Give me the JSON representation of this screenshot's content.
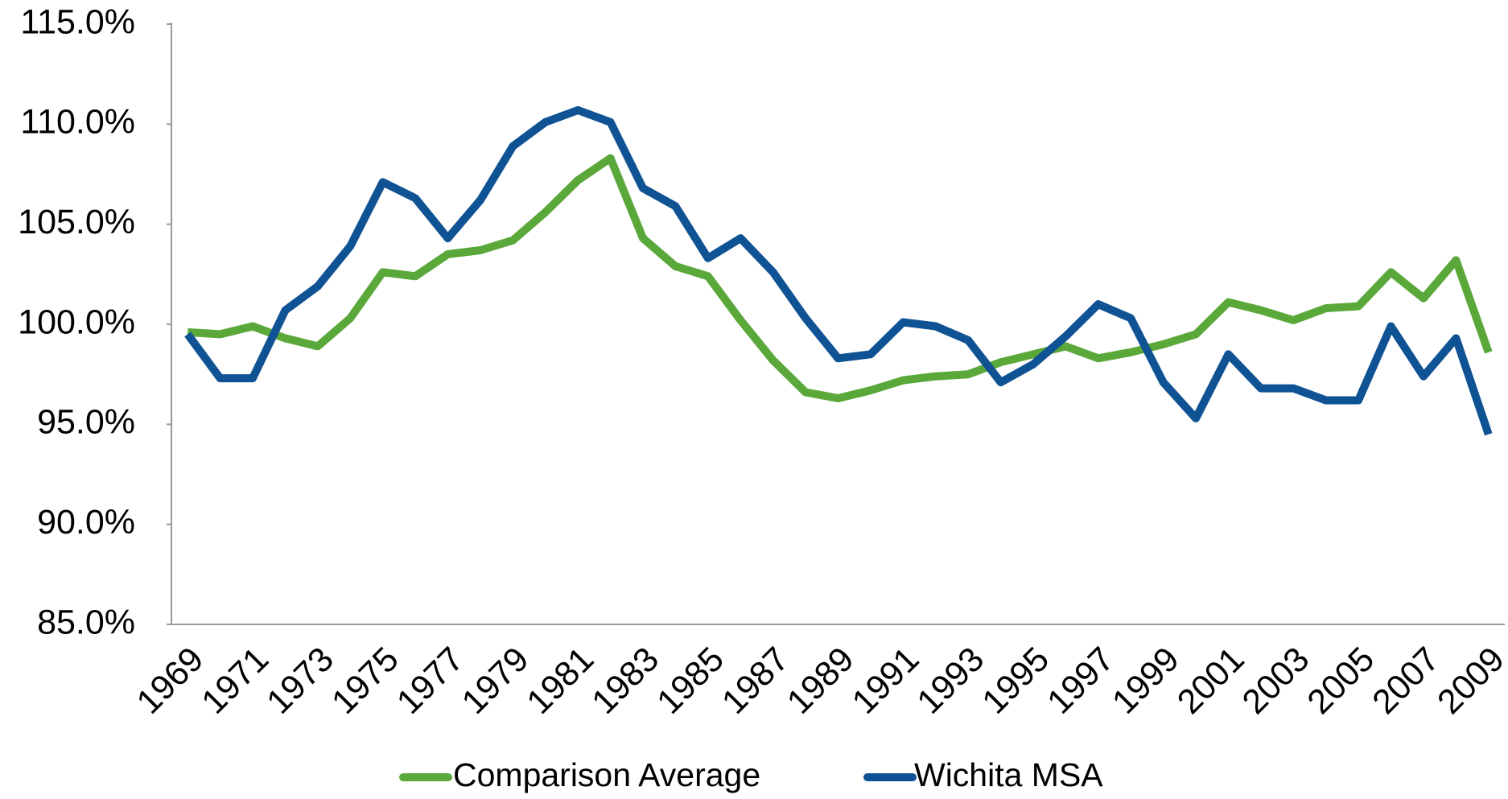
{
  "chart_data": {
    "type": "line",
    "categories": [
      "1969",
      null,
      "1971",
      null,
      "1973",
      null,
      "1975",
      null,
      "1977",
      null,
      "1979",
      null,
      "1981",
      null,
      "1983",
      null,
      "1985",
      null,
      "1987",
      null,
      "1989",
      null,
      "1991",
      null,
      "1993",
      null,
      "1995",
      null,
      "1997",
      null,
      "1999",
      null,
      "2001",
      null,
      "2003",
      null,
      "2005",
      null,
      "2007",
      null,
      "2009"
    ],
    "series": [
      {
        "name": "Comparison Average",
        "color": "#5aa83a",
        "values": [
          99.6,
          99.5,
          99.9,
          99.3,
          98.9,
          100.3,
          102.6,
          102.4,
          103.5,
          103.7,
          104.2,
          105.6,
          107.2,
          108.3,
          104.3,
          102.9,
          102.4,
          100.2,
          98.2,
          96.6,
          96.3,
          96.7,
          97.2,
          97.4,
          97.5,
          98.1,
          98.5,
          98.9,
          98.3,
          98.6,
          99.0,
          99.5,
          101.1,
          100.7,
          100.2,
          100.8,
          100.9,
          102.6,
          101.3,
          103.2,
          98.6
        ]
      },
      {
        "name": "Wichita MSA",
        "color": "#0f5394",
        "values": [
          99.5,
          97.3,
          97.3,
          100.7,
          101.9,
          103.9,
          107.1,
          106.3,
          104.3,
          106.2,
          108.9,
          110.1,
          110.7,
          110.1,
          106.8,
          105.9,
          103.3,
          104.3,
          102.6,
          100.3,
          98.3,
          98.5,
          100.1,
          99.9,
          99.2,
          97.1,
          98.0,
          99.4,
          101.0,
          100.3,
          97.1,
          95.3,
          98.5,
          96.8,
          96.8,
          96.2,
          96.2,
          99.9,
          97.4,
          99.3,
          94.5
        ]
      }
    ],
    "ylim": [
      85,
      115
    ],
    "yticks": [
      {
        "value": 85,
        "label": "85.0%"
      },
      {
        "value": 90,
        "label": "90.0%"
      },
      {
        "value": 95,
        "label": "95.0%"
      },
      {
        "value": 100,
        "label": "100.0%"
      },
      {
        "value": 105,
        "label": "105.0%"
      },
      {
        "value": 110,
        "label": "110.0%"
      },
      {
        "value": 115,
        "label": "115.0%"
      }
    ],
    "grid": false,
    "legend": "bottom"
  }
}
